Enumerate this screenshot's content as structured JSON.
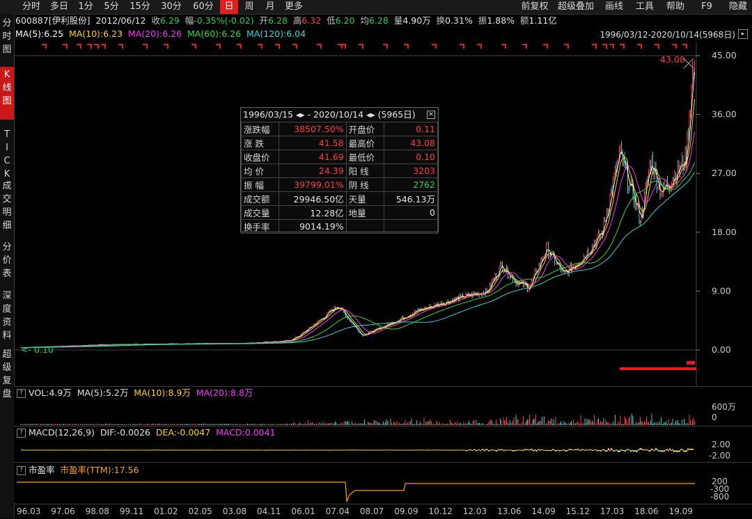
{
  "toolbar": {
    "tabs": [
      "分时",
      "多日",
      "1分",
      "5分",
      "15分",
      "30分",
      "60分",
      "日",
      "周",
      "月",
      "更多"
    ],
    "active_tab": "日",
    "right_items": [
      "前复权",
      "超级叠加",
      "画线",
      "工具",
      "帮助",
      "F9",
      "隐藏"
    ]
  },
  "sidebar": {
    "items": [
      "分\n时\n图",
      "K\n线\n图",
      "T\nI\nC\nK",
      "成\n交\n明\n细",
      "分\n价\n表",
      "深\n度\n资\n料",
      "超\n级\n复\n盘"
    ]
  },
  "quote": {
    "code": "600887[伊利股份]",
    "date": "2012/06/12",
    "close_label": "收",
    "close": "6.29",
    "change_label": "幅",
    "change": "-0.35%(-0.02)",
    "open_label": "开",
    "open": "6.28",
    "high_label": "高",
    "high": "6.32",
    "low_label": "低",
    "low": "6.20",
    "avg_label": "均",
    "avg": "6.28",
    "vol_label": "量",
    "vol": "4.90万",
    "turn_label": "换",
    "turn": "0.31%",
    "amp_label": "振",
    "amp": "1.88%",
    "amt_label": "额",
    "amt": "1.11亿"
  },
  "ma": {
    "ma5": "MA(5):6.25",
    "ma10": "MA(10):6.23",
    "ma20": "MA(20):6.26",
    "ma60": "MA(60):6.26",
    "ma120": "MA(120):6.04",
    "colors": {
      "ma5": "#ffffff",
      "ma10": "#ffd700",
      "ma20": "#ff33ff",
      "ma60": "#33dd33",
      "ma120": "#33d6d6"
    }
  },
  "range_label": "1996/03/12-2020/10/14(5968日)",
  "price_axis": [
    "45.00",
    "36.00",
    "27.00",
    "18.00",
    "9.00",
    "0.00"
  ],
  "price_axis_values": [
    45,
    36,
    27,
    18,
    9,
    0
  ],
  "max_price_label": "43.08",
  "min_price_label": "0.10",
  "stats": {
    "title": "1996/03/15 ◂▸ - 2020/10/14 ◂▸  (5965日)",
    "rows": [
      [
        "涨跌幅",
        "38507.50%",
        "开盘价",
        "0.11"
      ],
      [
        "涨  跌",
        "41.58",
        "最高价",
        "43.08"
      ],
      [
        "收盘价",
        "41.69",
        "最低价",
        "0.10"
      ],
      [
        "均  价",
        "24.39",
        "阳  线",
        "3203"
      ],
      [
        "振  幅",
        "39799.01%",
        "阴  线",
        "2762"
      ],
      [
        "成交额",
        "29946.50亿",
        "天量",
        "546.13万"
      ],
      [
        "成交量",
        "12.28亿",
        "地量",
        "0"
      ],
      [
        "换手率",
        "9014.19%",
        "",
        ""
      ]
    ]
  },
  "volume": {
    "label": "VOL:4.9万",
    "ma5": "MA(5):5.2万",
    "ma10": "MA(10):8.9万",
    "ma20": "MA(20):8.8万",
    "axis": [
      "600万",
      "0"
    ]
  },
  "macd": {
    "label": "MACD(12,26,9)",
    "dif": "DIF:-0.0026",
    "dea": "DEA:-0.0047",
    "macd": "MACD:0.0041",
    "axis": [
      "2.00",
      "-2.00"
    ]
  },
  "pe": {
    "label": "市盈率",
    "ttm": "市盈率(TTM):17.56",
    "axis": [
      "200",
      "-300",
      "-800"
    ]
  },
  "dates": [
    "96.03",
    "97.06",
    "98.08",
    "99.11",
    "01.02",
    "02.05",
    "03.08",
    "04.11",
    "06.01",
    "07.04",
    "08.07",
    "09.09",
    "10.12",
    "12.03",
    "13.06",
    "14.09",
    "15.12",
    "17.03",
    "18.06",
    "19.09"
  ],
  "colors": {
    "up": "#ff3b3b",
    "down": "#22d3d3",
    "border": "#3a3a3a"
  }
}
